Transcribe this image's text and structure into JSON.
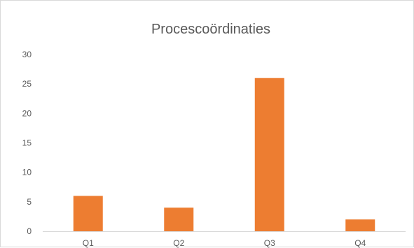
{
  "chart_data": {
    "type": "bar",
    "title": "Procescoördinaties",
    "categories": [
      "Q1",
      "Q2",
      "Q3",
      "Q4"
    ],
    "values": [
      6,
      4,
      26,
      2
    ],
    "ylim": [
      0,
      30
    ],
    "yticks": [
      0,
      5,
      10,
      15,
      20,
      25,
      30
    ],
    "grid": false,
    "legend": "none",
    "colors": {
      "bar": "#ed7d31",
      "axis": "#d9d9d9",
      "text": "#595959"
    }
  }
}
